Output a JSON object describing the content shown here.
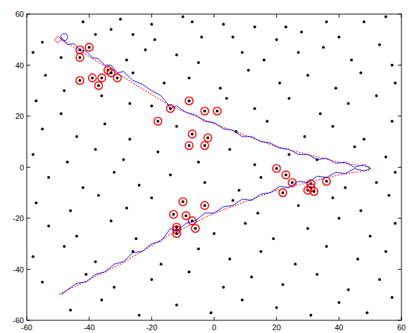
{
  "chart_data": {
    "type": "scatter",
    "xlim": [
      -60,
      60
    ],
    "ylim": [
      -60,
      60
    ],
    "xticks": [
      -60,
      -40,
      -20,
      0,
      20,
      40,
      60
    ],
    "yticks": [
      -60,
      -40,
      -20,
      0,
      20,
      40,
      60
    ],
    "grid": false,
    "series": [
      {
        "type": "scatter",
        "marker": "dot",
        "color": "#000000",
        "x": [
          -42,
          -30,
          -20,
          -10,
          -7,
          3,
          13,
          23,
          36,
          48,
          55,
          -55,
          -38,
          -33,
          -26,
          -19,
          -4,
          6,
          20,
          28,
          40,
          53,
          -58,
          -49,
          -28,
          -22,
          -12,
          -5,
          9,
          16,
          27,
          35,
          44,
          57,
          -54,
          -48,
          -26,
          -16,
          -8,
          2,
          11,
          21,
          30,
          39,
          47,
          58,
          -57,
          -49,
          -36,
          -27,
          -20,
          4,
          13,
          24,
          34,
          43,
          52,
          -55,
          -44,
          -35,
          -27,
          -12,
          7,
          17,
          29,
          38,
          48,
          57,
          -58,
          -47,
          -38,
          -29,
          -18,
          -5,
          5,
          13,
          24,
          33,
          45,
          55,
          -53,
          -42,
          -32,
          -24,
          -14,
          -3,
          8,
          15,
          42,
          52,
          58,
          -57,
          -46,
          -37,
          -28,
          -20,
          6,
          14,
          27,
          38,
          47,
          56,
          -53,
          -44,
          -33,
          -25,
          0,
          10,
          19,
          30,
          40,
          50,
          58,
          -58,
          -48,
          -38,
          -26,
          -17,
          -5,
          5,
          15,
          26,
          36,
          46,
          55,
          -55,
          -41,
          -32,
          -20,
          -8,
          3,
          12,
          22,
          33,
          43,
          53,
          -46,
          -36,
          -24,
          -12,
          -1,
          9,
          20,
          31,
          40,
          49,
          57
        ],
        "values": [
          57,
          58,
          56,
          59,
          57,
          56,
          55,
          55,
          57,
          57,
          59,
          49,
          52,
          54,
          52,
          50,
          51,
          51,
          50,
          53,
          51,
          48,
          45,
          43,
          42,
          46,
          44,
          41,
          45,
          42,
          45,
          47,
          42,
          40,
          36,
          30,
          37,
          33,
          35,
          31,
          38,
          33,
          36,
          31,
          37,
          33,
          26,
          21,
          28,
          25,
          24,
          27,
          23,
          27,
          21,
          25,
          28,
          15,
          12,
          17,
          11,
          16,
          14,
          18,
          12,
          16,
          11,
          18,
          5,
          2,
          7,
          3,
          6,
          2,
          7,
          1,
          5,
          3,
          8,
          4,
          -4,
          -8,
          -2,
          -7,
          -3,
          -6,
          -9,
          -4,
          -8,
          -6,
          -2,
          -14,
          -17,
          -11,
          -16,
          -12,
          -13,
          -18,
          -15,
          -12,
          -17,
          -11,
          -23,
          -27,
          -21,
          -28,
          -26,
          -22,
          -28,
          -24,
          -20,
          -27,
          -22,
          -35,
          -31,
          -37,
          -33,
          -38,
          -32,
          -36,
          -33,
          -38,
          -31,
          -36,
          -33,
          -45,
          -42,
          -47,
          -44,
          -41,
          -47,
          -43,
          -46,
          -42,
          -48,
          -44,
          -56,
          -52,
          -58,
          -54,
          -57,
          -52,
          -55,
          -58,
          -53,
          -57,
          -51
        ]
      },
      {
        "type": "scatter",
        "marker": "circled",
        "color": "#ff0000",
        "x": [
          -43,
          -40,
          -43,
          -43,
          -39,
          -36,
          -37,
          -34,
          -33,
          -31,
          -14,
          -18,
          -8,
          -3,
          1,
          -7,
          -8,
          -3,
          -2,
          20,
          23,
          25,
          22,
          30,
          31,
          31,
          32,
          36,
          -10,
          -13,
          -3,
          -9,
          -7,
          -6,
          -12,
          -12,
          -12
        ],
        "values": [
          46,
          47,
          43,
          34,
          35,
          35,
          32,
          38,
          37,
          35,
          23,
          18,
          26,
          22,
          22,
          13,
          8.5,
          8.5,
          11.5,
          -0.5,
          -3,
          -6,
          -10,
          -9,
          -6.5,
          -8,
          -9.5,
          -5.5,
          -13.5,
          -18.5,
          -15,
          -19,
          -21,
          -24,
          -23.5,
          -24.5,
          -26
        ]
      },
      {
        "type": "line",
        "line_style": "dotted",
        "color": "#ff0000",
        "x": [
          -49,
          -30,
          -14,
          0,
          20,
          40,
          50,
          50,
          40,
          20,
          0,
          -15,
          -30,
          -50
        ],
        "values": [
          50,
          36,
          24,
          17,
          8,
          2,
          0,
          -1,
          -3,
          -9,
          -18,
          -27,
          -38,
          -50
        ]
      },
      {
        "type": "line",
        "line_style": "solid",
        "color": "#0000ff",
        "x": [
          -49,
          -47,
          -45,
          -43,
          -41,
          -39,
          -37,
          -35,
          -33,
          -31,
          -29,
          -26,
          -23,
          -20,
          -17,
          -15,
          -14,
          -12,
          -9,
          -6,
          -3,
          0,
          3,
          6,
          9,
          12,
          15,
          18,
          21,
          24,
          27,
          30,
          33,
          36,
          39,
          42,
          45,
          48,
          50,
          48,
          45,
          42,
          39,
          36,
          33,
          30,
          27,
          24,
          21,
          18,
          15,
          12,
          9,
          6,
          3,
          0,
          -3,
          -6,
          -9,
          -12,
          -14,
          -17,
          -20,
          -23,
          -26,
          -29,
          -32,
          -35,
          -38,
          -41,
          -44,
          -47,
          -49
        ],
        "values": [
          51,
          48,
          48.5,
          46,
          45.5,
          43,
          42.5,
          40,
          40,
          37,
          37.5,
          34,
          32.5,
          30,
          28,
          25,
          23,
          24,
          21.5,
          20.5,
          18,
          17.5,
          15,
          14.5,
          12,
          12,
          10,
          9.5,
          7.5,
          7,
          5,
          5,
          3,
          3.5,
          1.5,
          2,
          0,
          1,
          -0.5,
          -1.5,
          -0.5,
          -2.5,
          -2,
          -4,
          -3.5,
          -6,
          -5.5,
          -8,
          -7.5,
          -10,
          -10.5,
          -13,
          -12.5,
          -15,
          -15.5,
          -18,
          -18,
          -21,
          -22,
          -25,
          -24,
          -29,
          -30,
          -33,
          -33.5,
          -37,
          -38,
          -41,
          -42,
          -45,
          -45.5,
          -48,
          -50
        ]
      },
      {
        "type": "scatter",
        "marker": "circle",
        "color": "#0000ff",
        "x": [
          -48
        ],
        "values": [
          51
        ]
      },
      {
        "type": "scatter",
        "marker": "diamond",
        "color": "#ff0000",
        "x": [
          -50
        ],
        "values": [
          50
        ]
      }
    ]
  }
}
